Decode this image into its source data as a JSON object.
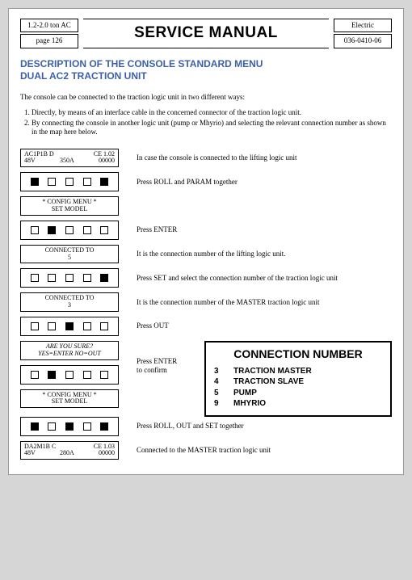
{
  "header": {
    "tl": "1.2-2.0 ton AC",
    "bl": "page 126",
    "title": "SERVICE MANUAL",
    "tr": "Electric",
    "br": "036-0410-06"
  },
  "blue1": "DESCRIPTION OF THE CONSOLE STANDARD MENU",
  "blue2": "DUAL AC2 TRACTION UNIT",
  "intro": "The console can be connected to the traction logic unit in two different ways:",
  "li1": "Directly, by means of an interface cable in the concerned connector of the traction logic unit.",
  "li2": "By connecting the console in another logic unit (pump or Mhyrio) and selecting the relevant connection number as shown in the map here below.",
  "d1a": "AC1P1B D",
  "d1b": "CE 1.02",
  "d1c": "48V",
  "d1d": "350A",
  "d1e": "00000",
  "t1": "In case the console is connected to the lifting logic unit",
  "t2": "Press ROLL and PARAM together",
  "d2a": "* CONFIG MENU *",
  "d2b": "SET MODEL",
  "t3": "Press ENTER",
  "d3a": "CONNECTED TO",
  "d3b": "5",
  "t4": "It is the connection number of the lifting logic unit.",
  "t5": "Press SET and select the connection number of the traction logic unit",
  "d4a": "CONNECTED TO",
  "d4b": "3",
  "t6": "It is the connection number of the MASTER traction logic unit",
  "t7": "Press OUT",
  "d5a": "ARE YOU SURE?",
  "d5b": "YES=ENTER NO=OUT",
  "t8a": "Press ENTER",
  "t8b": "to confirm",
  "d6a": "* CONFIG MENU *",
  "d6b": "SET MODEL",
  "t9": "Press ROLL, OUT and SET together",
  "d7a": "DA2M1B C",
  "d7b": "CE 1.03",
  "d7c": "48V",
  "d7d": "280A",
  "d7e": "00000",
  "t10": "Connected to the MASTER traction logic unit",
  "conn": {
    "title": "CONNECTION NUMBER",
    "rows": [
      {
        "n": "3",
        "l": "TRACTION MASTER"
      },
      {
        "n": "4",
        "l": "TRACTION SLAVE"
      },
      {
        "n": "5",
        "l": "PUMP"
      },
      {
        "n": "9",
        "l": "MHYRIO"
      }
    ]
  }
}
